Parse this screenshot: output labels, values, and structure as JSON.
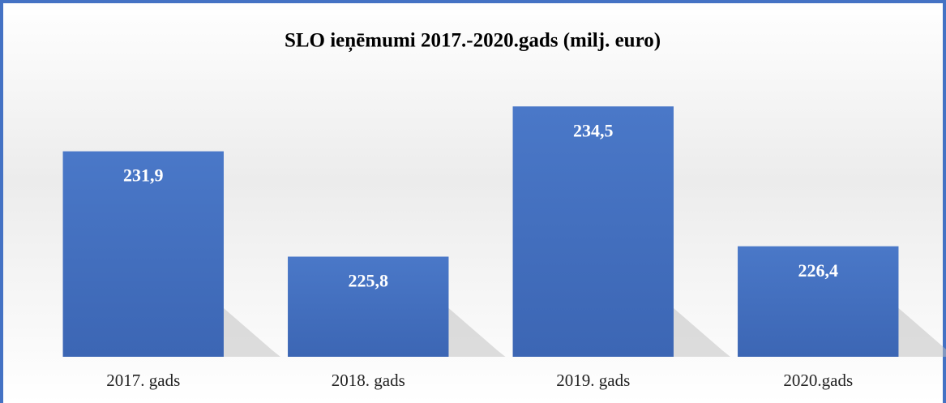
{
  "chart_data": {
    "type": "bar",
    "title": "SLO ieņēmumi 2017.-2020.gads (milj. euro)",
    "categories": [
      "2017. gads",
      "2018. gads",
      "2019. gads",
      "2020.gads"
    ],
    "values": [
      231.9,
      225.8,
      234.5,
      226.4
    ],
    "value_labels": [
      "231,9",
      "225,8",
      "234,5",
      "226,4"
    ],
    "color": "#4472c4",
    "ylim": [
      220,
      237
    ],
    "grid": false
  }
}
